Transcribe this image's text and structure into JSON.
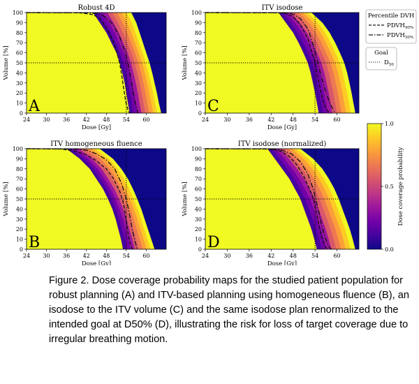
{
  "chart_data": [
    {
      "type": "heatmap",
      "panel_label": "A",
      "title": "Robust 4D",
      "xlabel": "Dose [Gy]",
      "ylabel": "Volume [%]",
      "xlim": [
        24,
        66
      ],
      "ylim": [
        0,
        100
      ],
      "xticks": [
        "24",
        "30",
        "36",
        "42",
        "48",
        "54",
        "60"
      ],
      "yticks": [
        "0",
        "10",
        "20",
        "30",
        "40",
        "50",
        "60",
        "70",
        "80",
        "90",
        "100"
      ],
      "goal_lines": {
        "dose": 54,
        "volume": 50
      },
      "probability_bands": {
        "full_coverage_end": [
          [
            100,
            44
          ],
          [
            90,
            46
          ],
          [
            80,
            48
          ],
          [
            70,
            49.5
          ],
          [
            60,
            51
          ],
          [
            50,
            52
          ],
          [
            40,
            52.8
          ],
          [
            30,
            53.5
          ],
          [
            20,
            54
          ],
          [
            10,
            54.5
          ],
          [
            0,
            55
          ]
        ],
        "zero_coverage_start": [
          [
            100,
            55.5
          ],
          [
            90,
            57
          ],
          [
            80,
            58
          ],
          [
            70,
            59
          ],
          [
            60,
            60
          ],
          [
            50,
            61
          ],
          [
            40,
            61.8
          ],
          [
            30,
            62.5
          ],
          [
            20,
            63.2
          ],
          [
            10,
            63.8
          ],
          [
            0,
            64.5
          ]
        ]
      },
      "series": [
        {
          "name": "PDVH 90%",
          "style": "dashed",
          "points": [
            [
              24,
              100
            ],
            [
              40,
              99.8
            ],
            [
              44,
              98
            ],
            [
              46,
              94
            ],
            [
              48,
              85
            ],
            [
              50,
              72
            ],
            [
              51,
              62
            ],
            [
              52,
              50
            ],
            [
              52.6,
              38
            ],
            [
              53.2,
              25
            ],
            [
              53.8,
              12
            ],
            [
              54.5,
              3
            ],
            [
              55,
              0
            ]
          ]
        },
        {
          "name": "PDVH 50%",
          "style": "dashdot",
          "points": [
            [
              24,
              100
            ],
            [
              43,
              99.8
            ],
            [
              46,
              98.5
            ],
            [
              48,
              95
            ],
            [
              50,
              88
            ],
            [
              52,
              76
            ],
            [
              53.5,
              62
            ],
            [
              54.5,
              50
            ],
            [
              55.3,
              36
            ],
            [
              56,
              22
            ],
            [
              56.8,
              9
            ],
            [
              57.5,
              0
            ]
          ]
        }
      ]
    },
    {
      "type": "heatmap",
      "panel_label": "C",
      "title": "ITV isodose",
      "xlabel": "Dose [Gy]",
      "ylabel": "Volume [%]",
      "xlim": [
        24,
        66
      ],
      "ylim": [
        0,
        100
      ],
      "xticks": [
        "24",
        "30",
        "36",
        "42",
        "48",
        "54",
        "60"
      ],
      "yticks": [
        "0",
        "10",
        "20",
        "30",
        "40",
        "50",
        "60",
        "70",
        "80",
        "90",
        "100"
      ],
      "goal_lines": {
        "dose": 54,
        "volume": 50
      },
      "probability_bands": {
        "full_coverage_end": [
          [
            100,
            44
          ],
          [
            90,
            46
          ],
          [
            80,
            48
          ],
          [
            70,
            49.5
          ],
          [
            60,
            50.8
          ],
          [
            50,
            52
          ],
          [
            40,
            52.8
          ],
          [
            30,
            53.4
          ],
          [
            20,
            54
          ],
          [
            10,
            54.5
          ],
          [
            0,
            55
          ]
        ],
        "zero_coverage_start": [
          [
            100,
            53
          ],
          [
            90,
            56
          ],
          [
            80,
            58
          ],
          [
            70,
            59.5
          ],
          [
            60,
            60.8
          ],
          [
            50,
            62
          ],
          [
            40,
            62.8
          ],
          [
            30,
            63.4
          ],
          [
            20,
            64
          ],
          [
            10,
            64.5
          ],
          [
            0,
            65
          ]
        ]
      },
      "series": [
        {
          "name": "PDVH 90%",
          "style": "dashed",
          "points": [
            [
              24,
              100
            ],
            [
              44,
              99.8
            ],
            [
              46,
              99
            ],
            [
              48,
              96
            ],
            [
              50,
              88
            ],
            [
              52,
              74
            ],
            [
              53.2,
              60
            ],
            [
              54,
              50
            ],
            [
              54.6,
              38
            ],
            [
              55.4,
              24
            ],
            [
              56.2,
              12
            ],
            [
              57,
              4
            ],
            [
              58,
              0
            ]
          ]
        },
        {
          "name": "PDVH 50%",
          "style": "dashdot",
          "points": [
            [
              24,
              100
            ],
            [
              46,
              99.8
            ],
            [
              48,
              98.5
            ],
            [
              50,
              94
            ],
            [
              52,
              84
            ],
            [
              53.5,
              68
            ],
            [
              54.5,
              54
            ],
            [
              55.3,
              42
            ],
            [
              56.2,
              30
            ],
            [
              57.2,
              18
            ],
            [
              58.3,
              8
            ],
            [
              59.5,
              0
            ]
          ]
        }
      ]
    },
    {
      "type": "heatmap",
      "panel_label": "B",
      "title": "ITV homogeneous fluence",
      "xlabel": "Dose [Gy]",
      "ylabel": "Volume [%]",
      "xlim": [
        24,
        66
      ],
      "ylim": [
        0,
        100
      ],
      "xticks": [
        "24",
        "30",
        "36",
        "42",
        "48",
        "54",
        "60"
      ],
      "yticks": [
        "0",
        "10",
        "20",
        "30",
        "40",
        "50",
        "60",
        "70",
        "80",
        "90",
        "100"
      ],
      "goal_lines": {
        "dose": 54,
        "volume": 50
      },
      "probability_bands": {
        "full_coverage_end": [
          [
            100,
            36
          ],
          [
            90,
            40
          ],
          [
            80,
            43
          ],
          [
            70,
            45
          ],
          [
            60,
            47
          ],
          [
            50,
            48.5
          ],
          [
            40,
            49.8
          ],
          [
            30,
            50.8
          ],
          [
            20,
            51.6
          ],
          [
            10,
            52.4
          ],
          [
            0,
            53
          ]
        ],
        "zero_coverage_start": [
          [
            100,
            46
          ],
          [
            90,
            50
          ],
          [
            80,
            52.5
          ],
          [
            70,
            54.5
          ],
          [
            60,
            56
          ],
          [
            50,
            57.3
          ],
          [
            40,
            58.5
          ],
          [
            30,
            59.5
          ],
          [
            20,
            60.5
          ],
          [
            10,
            61.5
          ],
          [
            0,
            62.5
          ]
        ]
      },
      "series": [
        {
          "name": "PDVH 90%",
          "style": "dashed",
          "points": [
            [
              24,
              100
            ],
            [
              34,
              99.8
            ],
            [
              38,
              98
            ],
            [
              42,
              94
            ],
            [
              45,
              88
            ],
            [
              48,
              80
            ],
            [
              50,
              71
            ],
            [
              52,
              58
            ],
            [
              53,
              48
            ],
            [
              53.8,
              33
            ],
            [
              54.4,
              18
            ],
            [
              55,
              8
            ],
            [
              55.8,
              0
            ]
          ]
        },
        {
          "name": "PDVH 50%",
          "style": "dashdot",
          "points": [
            [
              24,
              100
            ],
            [
              38,
              99.8
            ],
            [
              42,
              98.5
            ],
            [
              45,
              95
            ],
            [
              48,
              89
            ],
            [
              50.5,
              80
            ],
            [
              52.5,
              66
            ],
            [
              54,
              50
            ],
            [
              55,
              34
            ],
            [
              55.8,
              20
            ],
            [
              56.6,
              8
            ],
            [
              57.3,
              0
            ]
          ]
        }
      ]
    },
    {
      "type": "heatmap",
      "panel_label": "D",
      "title": "ITV isodose (normalized)",
      "xlabel": "Dose [Gy]",
      "ylabel": "Volume [%]",
      "xlim": [
        24,
        66
      ],
      "ylim": [
        0,
        100
      ],
      "xticks": [
        "24",
        "30",
        "36",
        "42",
        "48",
        "54",
        "60"
      ],
      "yticks": [
        "0",
        "10",
        "20",
        "30",
        "40",
        "50",
        "60",
        "70",
        "80",
        "90",
        "100"
      ],
      "goal_lines": {
        "dose": 54,
        "volume": 50
      },
      "probability_bands": {
        "full_coverage_end": [
          [
            100,
            41
          ],
          [
            90,
            43
          ],
          [
            80,
            45
          ],
          [
            70,
            47
          ],
          [
            60,
            48.5
          ],
          [
            50,
            50
          ],
          [
            40,
            51
          ],
          [
            30,
            52
          ],
          [
            20,
            53
          ],
          [
            10,
            53.8
          ],
          [
            0,
            54.5
          ]
        ],
        "zero_coverage_start": [
          [
            100,
            50
          ],
          [
            90,
            53.5
          ],
          [
            80,
            56
          ],
          [
            70,
            57.8
          ],
          [
            60,
            59.3
          ],
          [
            50,
            60.5
          ],
          [
            40,
            61.5
          ],
          [
            30,
            62.5
          ],
          [
            20,
            63.5
          ],
          [
            10,
            64.3
          ],
          [
            0,
            65
          ]
        ]
      },
      "series": [
        {
          "name": "PDVH 90%",
          "style": "dashed",
          "points": [
            [
              24,
              100
            ],
            [
              40,
              99.8
            ],
            [
              43,
              99
            ],
            [
              45,
              97
            ],
            [
              47,
              92
            ],
            [
              49,
              84
            ],
            [
              51,
              72
            ],
            [
              52.5,
              60
            ],
            [
              53.6,
              50
            ],
            [
              54.3,
              38
            ],
            [
              55,
              25
            ],
            [
              55.8,
              12
            ],
            [
              56.7,
              3
            ],
            [
              57.5,
              0
            ]
          ]
        },
        {
          "name": "PDVH 50%",
          "style": "dashdot",
          "points": [
            [
              24,
              100
            ],
            [
              42,
              99.8
            ],
            [
              45,
              98.5
            ],
            [
              47.5,
              95
            ],
            [
              50,
              87
            ],
            [
              52,
              75
            ],
            [
              53.3,
              62
            ],
            [
              54.2,
              50
            ],
            [
              55,
              38
            ],
            [
              55.8,
              24
            ],
            [
              56.7,
              12
            ],
            [
              57.7,
              3
            ],
            [
              58.5,
              0
            ]
          ]
        }
      ]
    }
  ],
  "legend": {
    "title": "Percentile DVH",
    "entries": [
      {
        "label": "PDVH",
        "sub": "90%",
        "style": "dashed"
      },
      {
        "label": "PDVH",
        "sub": "50%",
        "style": "dashdot"
      }
    ],
    "goal_title": "Goal",
    "goal_entry": {
      "label": "D",
      "sub": "50",
      "style": "dotted"
    }
  },
  "colorbar": {
    "label": "Dose coverage probability",
    "ticks": [
      "1.0",
      "0.5",
      "0.0"
    ],
    "range": [
      0,
      1
    ],
    "colormap": [
      "#0d0887",
      "#46039f",
      "#7201a8",
      "#9c179e",
      "#bd3786",
      "#d8576b",
      "#ed7953",
      "#fb9f3a",
      "#fdca26",
      "#f0f921"
    ]
  },
  "colors": {
    "high_probability": "#f0f921",
    "low_probability": "#0d0887"
  },
  "caption": "Figure 2. Dose coverage probability maps for the studied patient population for robust planning (A) and ITV-based planning using homogeneous fluence (B), an isodose to the ITV volume (C) and the same isodose plan renormalized to the intended goal at D50% (D), illustrating the risk for loss of target coverage due to irregular breathing motion."
}
